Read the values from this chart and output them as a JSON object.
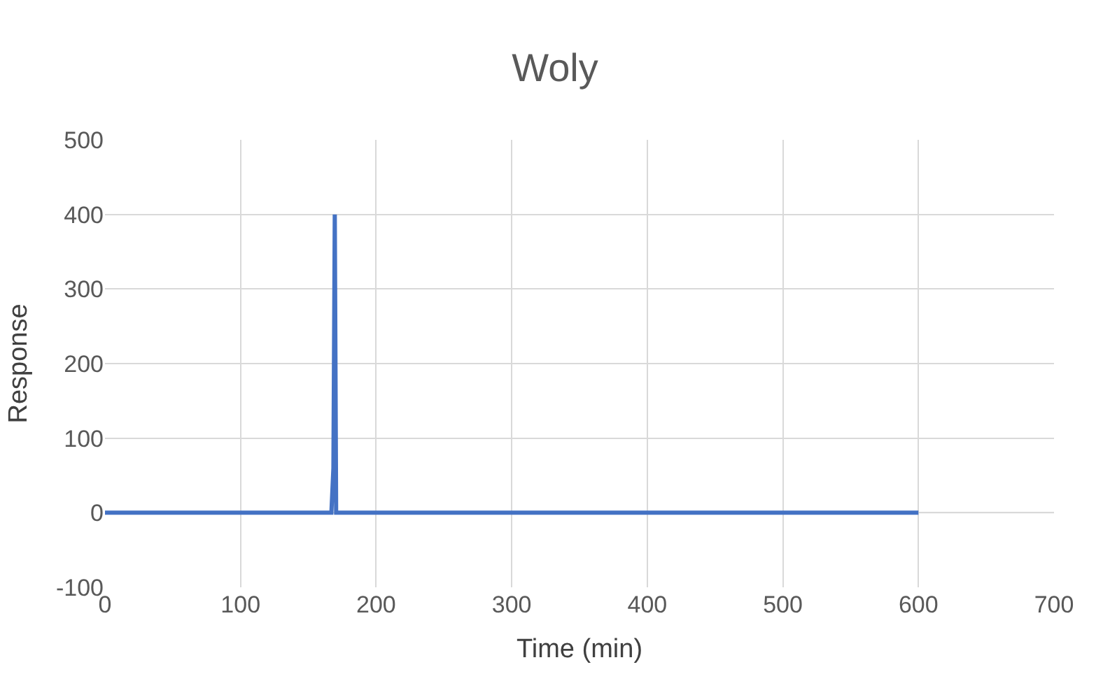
{
  "chart_data": {
    "type": "line",
    "title": "Woly",
    "xlabel": "Time (min)",
    "ylabel": "Response",
    "series": [
      {
        "color": "#4472c4",
        "x": [
          0,
          167,
          168.5,
          169.5,
          170.5,
          172,
          600
        ],
        "values": [
          0,
          0,
          60,
          400,
          0,
          0,
          0
        ]
      }
    ],
    "xlim": [
      0,
      700
    ],
    "xticks": [
      0,
      100,
      200,
      300,
      400,
      500,
      600,
      700
    ],
    "ylim": [
      -100,
      500
    ],
    "yticks": [
      -100,
      0,
      100,
      200,
      300,
      400,
      500
    ],
    "grid": true,
    "legend": false,
    "marker": "none",
    "line_style": "solid"
  }
}
